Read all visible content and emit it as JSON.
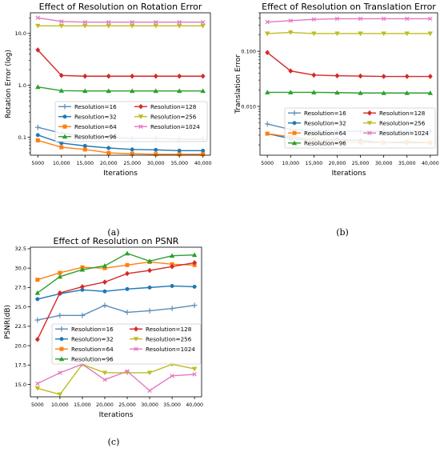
{
  "chart_data": [
    {
      "type": "line",
      "caption": "(a)",
      "title": "Effect of Resolution on Rotation Error",
      "xlabel": "Iterations",
      "ylabel": "Rotation Error (log)",
      "yscale": "log",
      "ylim": [
        0.045,
        25
      ],
      "yticks": [
        0.1,
        1.0,
        10.0
      ],
      "ytick_labels": [
        "0.1",
        "1.0",
        "10.0"
      ],
      "x": [
        5000,
        10000,
        15000,
        20000,
        25000,
        30000,
        35000,
        40000
      ],
      "xtick_labels": [
        "5000",
        "10,000",
        "15,000",
        "20,000",
        "25,000",
        "30,000",
        "35,000",
        "40,000"
      ],
      "legend": "center-right, 2 columns",
      "series": [
        {
          "name": "Resolution=16",
          "values": [
            0.155,
            0.12,
            0.105,
            0.1,
            0.095,
            0.095,
            0.092,
            0.091
          ]
        },
        {
          "name": "Resolution=32",
          "values": [
            0.11,
            0.077,
            0.068,
            0.062,
            0.058,
            0.057,
            0.055,
            0.055
          ]
        },
        {
          "name": "Resolution=64",
          "values": [
            0.087,
            0.064,
            0.058,
            0.05,
            0.048,
            0.047,
            0.047,
            0.047
          ]
        },
        {
          "name": "Resolution=96",
          "values": [
            0.93,
            0.79,
            0.78,
            0.78,
            0.78,
            0.78,
            0.78,
            0.78
          ]
        },
        {
          "name": "Resolution=128",
          "values": [
            4.8,
            1.55,
            1.5,
            1.5,
            1.5,
            1.5,
            1.5,
            1.5
          ]
        },
        {
          "name": "Resolution=256",
          "values": [
            14.0,
            14.0,
            14.0,
            14.0,
            14.0,
            14.0,
            14.0,
            14.0
          ]
        },
        {
          "name": "Resolution=1024",
          "values": [
            20.0,
            17.0,
            16.5,
            16.5,
            16.5,
            16.5,
            16.5,
            16.5
          ]
        }
      ]
    },
    {
      "type": "line",
      "caption": "(b)",
      "title": "Effect of Resolution on Translation Error",
      "xlabel": "Iterations",
      "ylabel": "Translation Error",
      "yscale": "log",
      "ylim": [
        0.0013,
        0.5
      ],
      "yticks": [
        0.01,
        0.1
      ],
      "ytick_labels": [
        "0.010",
        "0.100"
      ],
      "x": [
        5000,
        10000,
        15000,
        20000,
        25000,
        30000,
        35000,
        40000
      ],
      "xtick_labels": [
        "5000",
        "10,000",
        "15,000",
        "20,000",
        "25,000",
        "30,000",
        "35,000",
        "40,000"
      ],
      "legend": "lower-right, 2 columns",
      "series": [
        {
          "name": "Resolution=16",
          "values": [
            0.0048,
            0.0038,
            0.0036,
            0.0036,
            0.0035,
            0.0035,
            0.0035,
            0.0035
          ]
        },
        {
          "name": "Resolution=32",
          "values": [
            0.0032,
            0.0026,
            0.0024,
            0.0025,
            0.0024,
            0.0022,
            0.0022,
            0.0022
          ]
        },
        {
          "name": "Resolution=64",
          "values": [
            0.0032,
            0.0028,
            0.0025,
            0.0023,
            0.0022,
            0.0022,
            0.0023,
            0.0022
          ]
        },
        {
          "name": "Resolution=96",
          "values": [
            0.018,
            0.018,
            0.018,
            0.0178,
            0.0175,
            0.0175,
            0.0175,
            0.0175
          ]
        },
        {
          "name": "Resolution=128",
          "values": [
            0.095,
            0.044,
            0.037,
            0.036,
            0.0355,
            0.035,
            0.035,
            0.035
          ]
        },
        {
          "name": "Resolution=256",
          "values": [
            0.21,
            0.22,
            0.21,
            0.21,
            0.21,
            0.21,
            0.21,
            0.21
          ]
        },
        {
          "name": "Resolution=1024",
          "values": [
            0.34,
            0.36,
            0.38,
            0.39,
            0.39,
            0.39,
            0.39,
            0.39
          ]
        }
      ]
    },
    {
      "type": "line",
      "caption": "(c)",
      "title": "Effect of Resolution on PSNR",
      "xlabel": "Iterations",
      "ylabel": "PSNR(dB)",
      "yscale": "linear",
      "ylim": [
        13.4,
        32.7
      ],
      "yticks": [
        15,
        17.5,
        20,
        22.5,
        25,
        27.5,
        30,
        32.5
      ],
      "ytick_labels": [
        "15.0",
        "17.5",
        "20.0",
        "22.5",
        "25.0",
        "27.5",
        "30.0",
        "32.5"
      ],
      "x": [
        5000,
        10000,
        15000,
        20000,
        25000,
        30000,
        35000,
        40000
      ],
      "xtick_labels": [
        "5000",
        "10,000",
        "15,000",
        "20,000",
        "25,000",
        "30,000",
        "35,000",
        "40,000"
      ],
      "legend": "center, 2 columns",
      "series": [
        {
          "name": "Resolution=16",
          "values": [
            23.3,
            23.9,
            23.9,
            25.2,
            24.3,
            24.5,
            24.8,
            25.2
          ]
        },
        {
          "name": "Resolution=32",
          "values": [
            26.0,
            26.7,
            27.2,
            27.0,
            27.3,
            27.5,
            27.7,
            27.6
          ]
        },
        {
          "name": "Resolution=64",
          "values": [
            28.5,
            29.4,
            30.1,
            30.0,
            30.4,
            30.8,
            30.5,
            30.4
          ]
        },
        {
          "name": "Resolution=96",
          "values": [
            26.8,
            28.9,
            29.8,
            30.3,
            31.9,
            30.9,
            31.6,
            31.7
          ]
        },
        {
          "name": "Resolution=128",
          "values": [
            20.8,
            26.8,
            27.6,
            28.2,
            29.3,
            29.7,
            30.2,
            30.7
          ]
        },
        {
          "name": "Resolution=256",
          "values": [
            14.5,
            13.7,
            17.6,
            16.5,
            16.5,
            16.5,
            17.6,
            17.0
          ]
        },
        {
          "name": "Resolution=1024",
          "values": [
            15.1,
            16.5,
            17.6,
            15.6,
            16.7,
            14.2,
            16.1,
            16.3
          ]
        }
      ]
    }
  ],
  "colors": {
    "Resolution=16": "#5b8db8",
    "Resolution=32": "#1f77b4",
    "Resolution=64": "#ff7f0e",
    "Resolution=96": "#2ca02c",
    "Resolution=128": "#d62728",
    "Resolution=256": "#bcbd22",
    "Resolution=1024": "#e377c2"
  },
  "markers": {
    "Resolution=16": "plus",
    "Resolution=32": "circle",
    "Resolution=64": "square",
    "Resolution=96": "triangle-up",
    "Resolution=128": "diamond",
    "Resolution=256": "triangle-down",
    "Resolution=1024": "x"
  }
}
